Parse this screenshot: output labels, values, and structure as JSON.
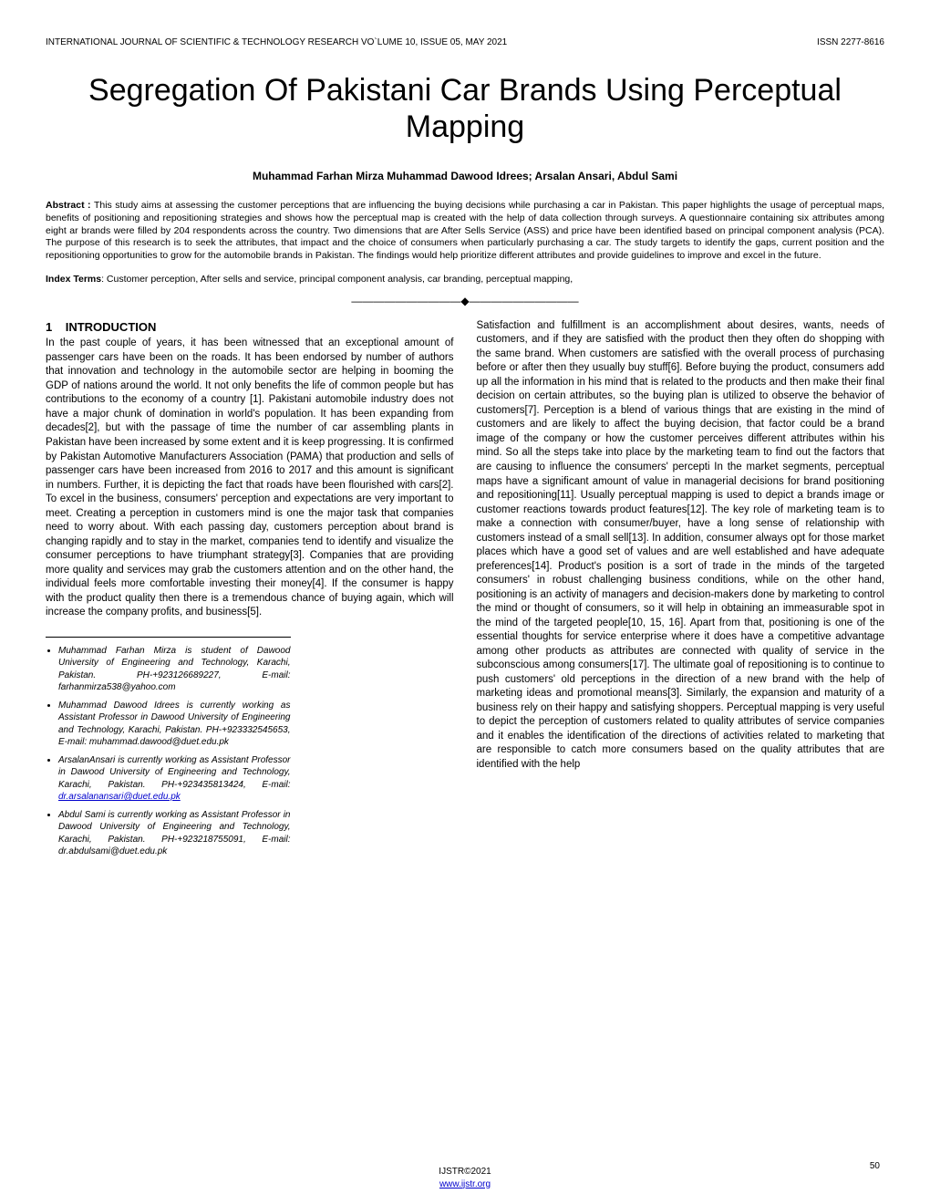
{
  "header": {
    "left": "INTERNATIONAL JOURNAL OF SCIENTIFIC & TECHNOLOGY RESEARCH VO`LUME 10, ISSUE 05, MAY 2021",
    "right": "ISSN 2277-8616"
  },
  "title": "Segregation Of Pakistani Car Brands Using Perceptual Mapping",
  "authors": "Muhammad Farhan Mirza Muhammad Dawood Idrees; Arsalan Ansari, Abdul Sami",
  "abstract_label": "Abstract : ",
  "abstract": "This study aims at assessing the customer perceptions that are influencing the buying decisions while purchasing a car in Pakistan. This paper highlights the usage of perceptual maps, benefits of positioning and repositioning strategies and shows how the perceptual map is created with the help of data collection through surveys. A questionnaire containing six attributes among eight ar brands were filled by 204 respondents across the country. Two dimensions that are After Sells Service (ASS) and price have been identified based on principal component analysis (PCA). The purpose of this research is to seek the attributes, that impact and the choice of consumers when particularly purchasing a car. The study targets to identify the gaps, current position and the repositioning opportunities to grow for the automobile brands in Pakistan. The findings would help prioritize different attributes and provide guidelines to improve and excel in the future.",
  "index_label": "Index Terms",
  "index_terms": ": Customer perception, After sells and service, principal component analysis, car branding, perceptual mapping,",
  "separator": "——————————◆——————————",
  "section1": {
    "num": "1",
    "title": "INTRODUCTION"
  },
  "col1_p1": "In the past couple of years, it has been witnessed that an exceptional amount of passenger cars have been on the roads. It has been endorsed by number of authors that innovation and technology in the automobile sector are helping in booming the GDP of nations around the world. It not only benefits the life of common people but has contributions to the economy of a country [1]. Pakistani automobile industry does not have a major chunk of domination in world's population. It has been expanding from decades[2], but with the passage of time the number of car assembling plants in Pakistan have been increased by some extent and it is keep progressing. It is confirmed by Pakistan Automotive Manufacturers Association (PAMA) that production and sells of passenger cars have been increased from 2016 to 2017 and this amount is significant in numbers. Further, it is depicting the fact that roads have been flourished with cars[2]. To excel in the business, consumers' perception and expectations are very important to meet. Creating a perception in customers mind is one the major task that companies need to worry about. With each passing day, customers perception about brand is changing rapidly and to stay in the market, companies tend to identify and visualize the consumer perceptions to have triumphant strategy[3]. Companies that are providing more quality and services may grab the customers attention and on the other hand, the individual feels more comfortable investing their money[4]. If the consumer is happy with the product quality then there is a tremendous chance of buying again, which will increase the company profits, and business[5].",
  "author_info": [
    "Muhammad Farhan Mirza is student of Dawood University of Engineering and Technology, Karachi, Pakistan. PH-+923126689227, E-mail: farhanmirza538@yahoo.com",
    "Muhammad Dawood Idrees is currently working as Assistant Professor in Dawood University of Engineering and Technology, Karachi, Pakistan. PH-+923332545653, E-mail: muhammad.dawood@duet.edu.pk",
    "ArsalanAnsari  is currently working as Assistant Professor in Dawood University of Engineering and Technology, Karachi, Pakistan. PH-+923435813424, E-mail: ",
    "Abdul Sami  is currently working as Assistant Professor in Dawood University of Engineering and Technology, Karachi, Pakistan. PH-+923218755091, E-mail: dr.abdulsami@duet.edu.pk"
  ],
  "author_link": "dr.arsalanansari@duet.edu.pk",
  "col2_p1": "Satisfaction and fulfillment is an accomplishment about desires, wants, needs of customers, and if they are satisfied with the product then they often do shopping with the same brand. When customers are satisfied with the overall process of purchasing before or after then they usually buy stuff[6]. Before buying the product, consumers add up all the information in his mind that is related to the products and then make their final decision on certain attributes, so the buying plan is utilized to observe the behavior of customers[7]. Perception is a blend of various things that are existing in the mind of customers and are likely to affect the buying decision, that factor could be a brand image of the company or how the customer perceives different attributes within his mind. So all the steps take into place by the marketing team to find out the factors that are causing to influence the consumers' percepti In the market segments, perceptual maps have a significant amount of value in managerial decisions for brand positioning and repositioning[11]. Usually perceptual mapping is used to depict a brands image or customer reactions towards product features[12]. The key role of marketing team is to make a connection with consumer/buyer, have a long sense of relationship with customers instead of a small sell[13]. In addition, consumer always opt for those market places which have a good set of values and are well established and have adequate preferences[14]. Product's position is a sort of trade in the minds of the targeted consumers' in robust challenging business conditions, while on the other hand, positioning is an activity of managers and decision-makers done by marketing to control the mind or thought of consumers, so it will help in obtaining an immeasurable spot in the mind of the targeted people[10, 15, 16]. Apart from that, positioning is one of the essential thoughts for service enterprise where it does have a competitive advantage among other products as attributes are connected with quality of service in the subconscious among consumers[17]. The ultimate goal of repositioning is to continue to push customers' old perceptions in the direction of a new brand with the help of marketing ideas and promotional means[3]. Similarly, the expansion and maturity of a business rely on their happy and satisfying shoppers. Perceptual mapping is very useful to depict the perception of customers related to quality attributes of service companies and it enables the identification of the directions of activities related to marketing that are responsible to catch more consumers based on the quality attributes that are identified with the help",
  "footer": {
    "line1": "IJSTR©2021",
    "link": "www.ijstr.org"
  },
  "page_num": "50"
}
